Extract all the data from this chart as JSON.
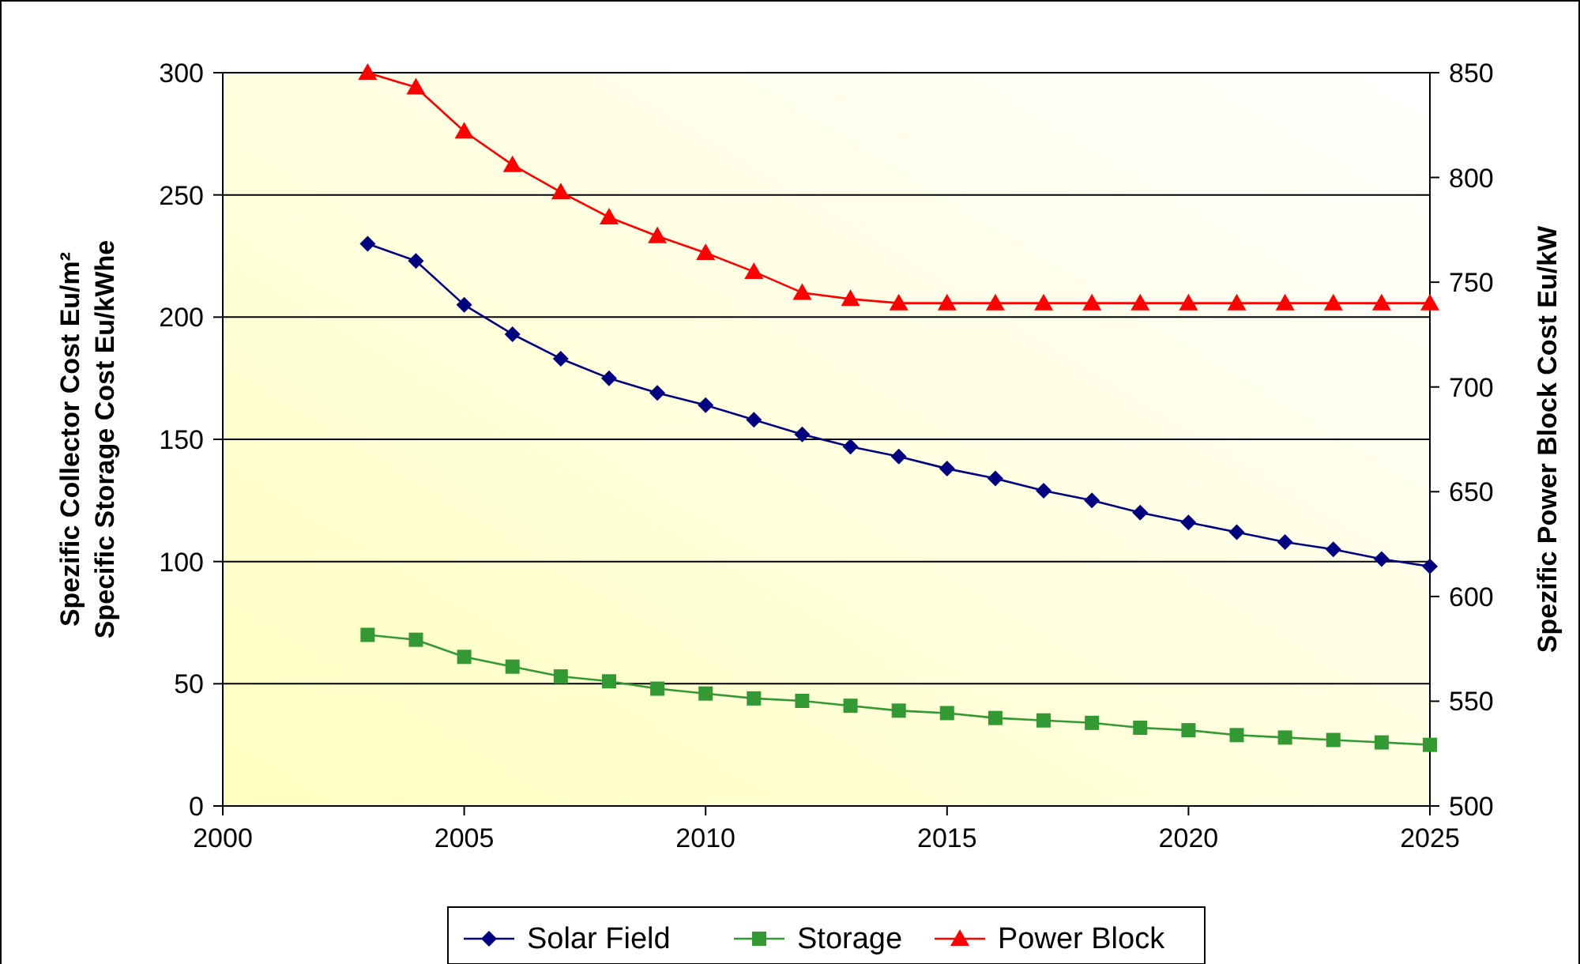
{
  "chart_data": {
    "type": "line",
    "x": [
      2003,
      2004,
      2005,
      2006,
      2007,
      2008,
      2009,
      2010,
      2011,
      2012,
      2013,
      2014,
      2015,
      2016,
      2017,
      2018,
      2019,
      2020,
      2021,
      2022,
      2023,
      2024,
      2025
    ],
    "series": [
      {
        "name": "Solar Field",
        "color": "#000080",
        "marker": "diamond",
        "values": [
          230,
          223,
          205,
          193,
          183,
          175,
          169,
          164,
          158,
          152,
          147,
          143,
          138,
          134,
          129,
          125,
          120,
          116,
          112,
          108,
          105,
          101,
          98
        ]
      },
      {
        "name": "Storage",
        "color": "#339933",
        "marker": "square",
        "values": [
          70,
          68,
          61,
          57,
          53,
          51,
          48,
          46,
          44,
          43,
          41,
          39,
          38,
          36,
          35,
          34,
          32,
          31,
          29,
          28,
          27,
          26,
          25
        ]
      },
      {
        "name": "Power Block",
        "color": "#ff0000",
        "marker": "triangle",
        "axis": "y2",
        "values": [
          850,
          843,
          822,
          806,
          793,
          781,
          772,
          764,
          755,
          745,
          742,
          740,
          740,
          740,
          740,
          740,
          740,
          740,
          740,
          740,
          740,
          740,
          740
        ]
      }
    ],
    "ylabel": "Spezific Collector Cost Eu/m²\nSpecific Storage Cost Eu/kWhe",
    "y2label": "Spezific Power Block Cost Eu/kW",
    "xlim": [
      2000,
      2025
    ],
    "xticks": [
      2000,
      2005,
      2010,
      2015,
      2020,
      2025
    ],
    "ylim": [
      0,
      300
    ],
    "yticks": [
      0,
      50,
      100,
      150,
      200,
      250,
      300
    ],
    "y2lim": [
      500,
      850
    ],
    "y2ticks": [
      500,
      550,
      600,
      650,
      700,
      750,
      800,
      850
    ],
    "grid": "y",
    "legend": "bottom"
  }
}
